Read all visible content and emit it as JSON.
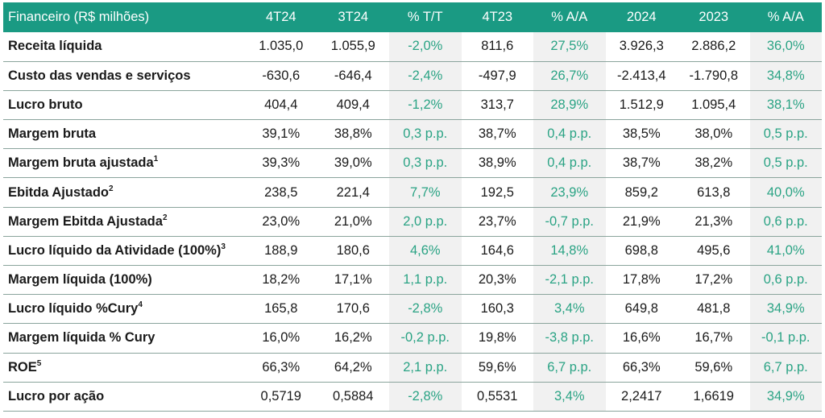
{
  "header": [
    "Financeiro (R$ milhões)",
    "4T24",
    "3T24",
    "% T/T",
    "4T23",
    "% A/A",
    "2024",
    "2023",
    "% A/A"
  ],
  "rows": [
    {
      "label": "Receita líquida",
      "sup": "",
      "values": [
        "1.035,0",
        "1.055,9",
        "-2,0%",
        "811,6",
        "27,5%",
        "3.926,3",
        "2.886,2",
        "36,0%"
      ]
    },
    {
      "label": "Custo das vendas e serviços",
      "sup": "",
      "values": [
        "-630,6",
        "-646,4",
        "-2,4%",
        "-497,9",
        "26,7%",
        "-2.413,4",
        "-1.790,8",
        "34,8%"
      ]
    },
    {
      "label": "Lucro bruto",
      "sup": "",
      "values": [
        "404,4",
        "409,4",
        "-1,2%",
        "313,7",
        "28,9%",
        "1.512,9",
        "1.095,4",
        "38,1%"
      ]
    },
    {
      "label": "Margem bruta",
      "sup": "",
      "values": [
        "39,1%",
        "38,8%",
        "0,3 p.p.",
        "38,7%",
        "0,4 p.p.",
        "38,5%",
        "38,0%",
        "0,5 p.p."
      ]
    },
    {
      "label": "Margem bruta ajustada",
      "sup": "1",
      "values": [
        "39,3%",
        "39,0%",
        "0,3 p.p.",
        "38,9%",
        "0,4 p.p.",
        "38,7%",
        "38,2%",
        "0,5 p.p."
      ]
    },
    {
      "label": "Ebitda Ajustado",
      "sup": "2",
      "values": [
        "238,5",
        "221,4",
        "7,7%",
        "192,5",
        "23,9%",
        "859,2",
        "613,8",
        "40,0%"
      ]
    },
    {
      "label": "Margem Ebitda Ajustada",
      "sup": "2",
      "values": [
        "23,0%",
        "21,0%",
        "2,0 p.p.",
        "23,7%",
        "-0,7 p.p.",
        "21,9%",
        "21,3%",
        "0,6 p.p."
      ]
    },
    {
      "label": "Lucro líquido da Atividade (100%)",
      "sup": "3",
      "values": [
        "188,9",
        "180,6",
        "4,6%",
        "164,6",
        "14,8%",
        "698,8",
        "495,6",
        "41,0%"
      ]
    },
    {
      "label": "Margem líquida (100%)",
      "sup": "",
      "values": [
        "18,2%",
        "17,1%",
        "1,1 p.p.",
        "20,3%",
        "-2,1 p.p.",
        "17,8%",
        "17,2%",
        "0,6 p.p."
      ]
    },
    {
      "label": "Lucro líquido %Cury",
      "sup": "4",
      "values": [
        "165,8",
        "170,6",
        "-2,8%",
        "160,3",
        "3,4%",
        "649,8",
        "481,8",
        "34,9%"
      ]
    },
    {
      "label": "Margem líquida % Cury",
      "sup": "",
      "values": [
        "16,0%",
        "16,2%",
        "-0,2 p.p.",
        "19,8%",
        "-3,8 p.p.",
        "16,6%",
        "16,7%",
        "-0,1 p.p."
      ]
    },
    {
      "label": "ROE",
      "sup": "5",
      "values": [
        "66,3%",
        "64,2%",
        "2,1 p.p.",
        "59,6%",
        "6,7 p.p.",
        "66,3%",
        "59,6%",
        "6,7 p.p."
      ]
    },
    {
      "label": "Lucro por ação",
      "sup": "",
      "values": [
        "0,5719",
        "0,5884",
        "-2,8%",
        "0,5531",
        "3,4%",
        "2,2417",
        "1,6619",
        "34,9%"
      ]
    }
  ],
  "colors": {
    "header_bg": "#1a9a83",
    "pct_text": "#2aa384",
    "pct_bg": "#f1f1f1"
  }
}
